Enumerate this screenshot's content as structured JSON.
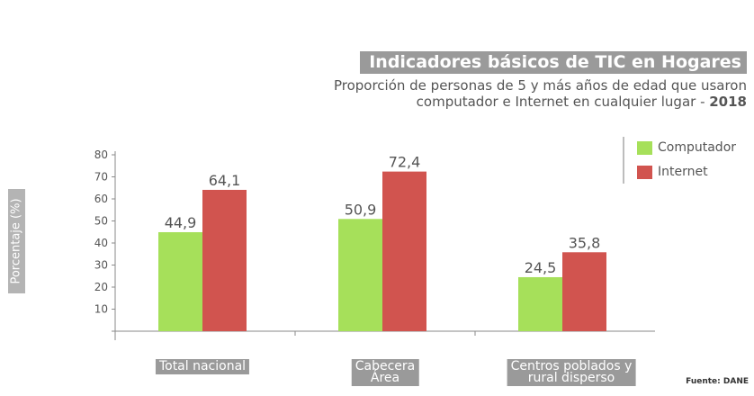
{
  "chart_data": {
    "type": "bar",
    "title": "Indicadores básicos de TIC en Hogares",
    "subtitle_line1": "Proporción de personas de 5 y más años de edad que usaron",
    "subtitle_line2": "computador e Internet en cualquier lugar - ",
    "subtitle_year": "2018",
    "ylabel": "Porcentaje (%)",
    "ylim": [
      0,
      80
    ],
    "yticks": [
      10,
      20,
      30,
      40,
      50,
      60,
      70,
      80
    ],
    "categories": [
      {
        "line1": "Total nacional",
        "line2": ""
      },
      {
        "line1": "Cabecera",
        "line2": "Área"
      },
      {
        "line1": "Centros poblados y",
        "line2": "rural disperso"
      }
    ],
    "series": [
      {
        "name": "Computador",
        "color": "#a6e05a",
        "values": [
          44.9,
          50.9,
          24.5
        ],
        "labels": [
          "44,9",
          "50,9",
          "24,5"
        ]
      },
      {
        "name": "Internet",
        "color": "#d1544f",
        "values": [
          64.1,
          72.4,
          35.8
        ],
        "labels": [
          "64,1",
          "72,4",
          "35,8"
        ]
      }
    ],
    "legend_position": "top-right",
    "grid": false,
    "source": "Fuente: DANE"
  }
}
